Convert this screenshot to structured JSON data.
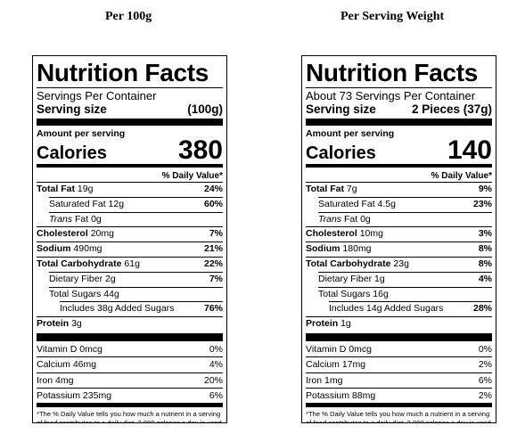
{
  "columns": [
    {
      "heading": "Per 100g",
      "label": {
        "title": "Nutrition Facts",
        "servings": "Servings Per Container",
        "serving_size_label": "Serving size",
        "serving_size_value": "(100g)",
        "amount_per_serving": "Amount per serving",
        "calories_label": "Calories",
        "calories_value": "380",
        "dv_header": "% Daily Value*",
        "total_fat": {
          "label": "Total Fat",
          "amount": "19g",
          "dv": "24%"
        },
        "saturated_fat": {
          "label": "Saturated Fat",
          "amount": "12g",
          "dv": "60%"
        },
        "trans_fat": {
          "label": "Trans",
          "suffix": "Fat 0g"
        },
        "cholesterol": {
          "label": "Cholesterol",
          "amount": "20mg",
          "dv": "7%"
        },
        "sodium": {
          "label": "Sodium",
          "amount": "490mg",
          "dv": "21%"
        },
        "total_carb": {
          "label": "Total Carbohydrate",
          "amount": "61g",
          "dv": "22%"
        },
        "dietary_fiber": {
          "label": "Dietary Fiber",
          "amount": "2g",
          "dv": "7%"
        },
        "total_sugars": {
          "label": "Total Sugars",
          "amount": "44g"
        },
        "added_sugars": {
          "label": "Includes 38g Added Sugars",
          "dv": "76%"
        },
        "protein": {
          "label": "Protein",
          "amount": "3g"
        },
        "vitamin_d": {
          "label": "Vitamin D 0mcg",
          "dv": "0%"
        },
        "calcium": {
          "label": "Calcium 46mg",
          "dv": "4%"
        },
        "iron": {
          "label": "Iron 4mg",
          "dv": "20%"
        },
        "potassium": {
          "label": "Potassium 235mg",
          "dv": "6%"
        },
        "footnote": "*The % Daily Value tells you how much a nutrient in a serving of food contributes to a daily diet. 2,000 calories a day is used for general nutrition advice."
      }
    },
    {
      "heading": "Per Serving Weight",
      "label": {
        "title": "Nutrition Facts",
        "servings": "About 73 Servings Per Container",
        "serving_size_label": "Serving size",
        "serving_size_value": "2 Pieces (37g)",
        "amount_per_serving": "Amount per serving",
        "calories_label": "Calories",
        "calories_value": "140",
        "dv_header": "% Daily Value*",
        "total_fat": {
          "label": "Total Fat",
          "amount": "7g",
          "dv": "9%"
        },
        "saturated_fat": {
          "label": "Saturated Fat",
          "amount": "4.5g",
          "dv": "23%"
        },
        "trans_fat": {
          "label": "Trans",
          "suffix": "Fat 0g"
        },
        "cholesterol": {
          "label": "Cholesterol",
          "amount": "10mg",
          "dv": "3%"
        },
        "sodium": {
          "label": "Sodium",
          "amount": "180mg",
          "dv": "8%"
        },
        "total_carb": {
          "label": "Total Carbohydrate",
          "amount": "23g",
          "dv": "8%"
        },
        "dietary_fiber": {
          "label": "Dietary Fiber",
          "amount": "1g",
          "dv": "4%"
        },
        "total_sugars": {
          "label": "Total Sugars",
          "amount": "16g"
        },
        "added_sugars": {
          "label": "Includes 14g Added Sugars",
          "dv": "28%"
        },
        "protein": {
          "label": "Protein",
          "amount": "1g"
        },
        "vitamin_d": {
          "label": "Vitamin D 0mcg",
          "dv": "0%"
        },
        "calcium": {
          "label": "Calcium 17mg",
          "dv": "2%"
        },
        "iron": {
          "label": "Iron 1mg",
          "dv": "6%"
        },
        "potassium": {
          "label": "Potassium 88mg",
          "dv": "2%"
        },
        "footnote": "*The % Daily Value tells you how much a nutrient in a serving of food contributes to a daily diet. 2,000 calories a day is used for general nutrition advice."
      }
    }
  ]
}
